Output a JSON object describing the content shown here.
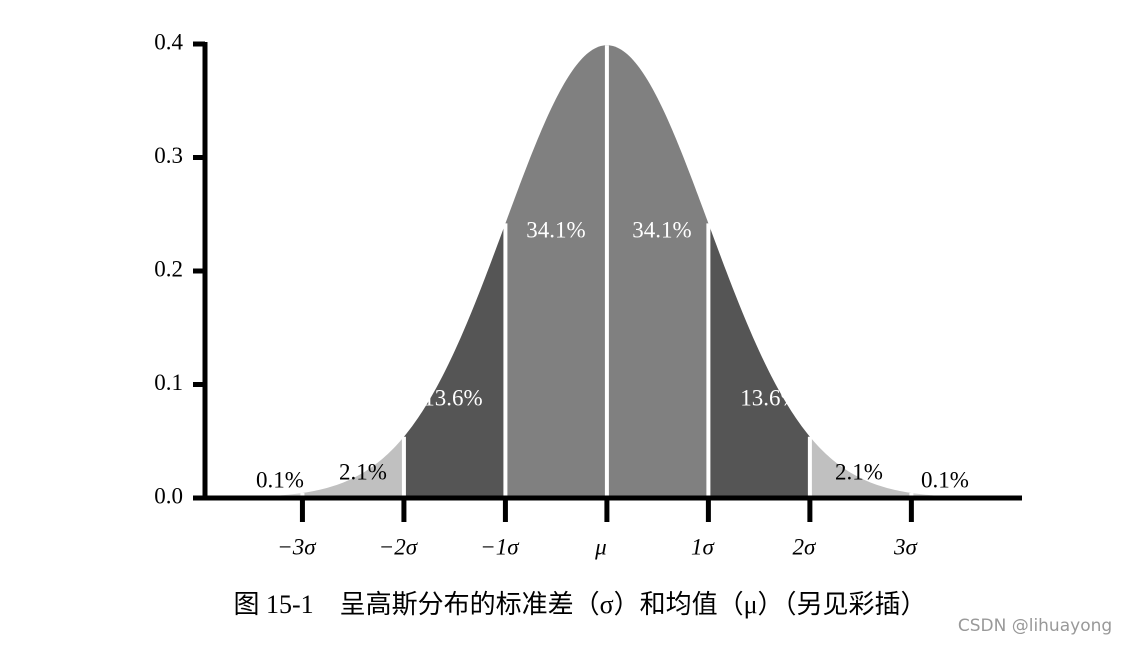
{
  "chart_data": {
    "type": "normal-areas",
    "caption": "图 15-1　呈高斯分布的标准差（σ）和均值（μ）（另见彩插）",
    "watermark": "CSDN @lihuayong",
    "values": [
      0.1,
      2.1,
      13.6,
      34.1,
      34.1,
      13.6,
      2.1,
      0.1
    ],
    "value_labels": [
      "0.1%",
      "2.1%",
      "13.6%",
      "34.1%",
      "34.1%",
      "13.6%",
      "2.1%",
      "0.1%"
    ],
    "colors": [
      "#d4d4d4",
      "#c0c0c0",
      "#555555",
      "#808080",
      "#808080",
      "#555555",
      "#c0c0c0",
      "#d4d4d4"
    ],
    "xlim": [
      -3.96,
      4.09
    ],
    "xticks": [
      {
        "value": -3,
        "label": "−3σ"
      },
      {
        "value": -2,
        "label": "−2σ"
      },
      {
        "value": -1,
        "label": "−1σ"
      },
      {
        "value": 0,
        "label": "μ"
      },
      {
        "value": 1,
        "label": "1σ"
      },
      {
        "value": 2,
        "label": "2σ"
      },
      {
        "value": 3,
        "label": "3σ"
      }
    ],
    "ylim": [
      0,
      0.4
    ],
    "yticks": [
      {
        "value": 0,
        "label": "0.0"
      },
      {
        "value": 0.1,
        "label": "0.1"
      },
      {
        "value": 0.2,
        "label": "0.2"
      },
      {
        "value": 0.3,
        "label": "0.3"
      },
      {
        "value": 0.4,
        "label": "0.4"
      }
    ]
  }
}
